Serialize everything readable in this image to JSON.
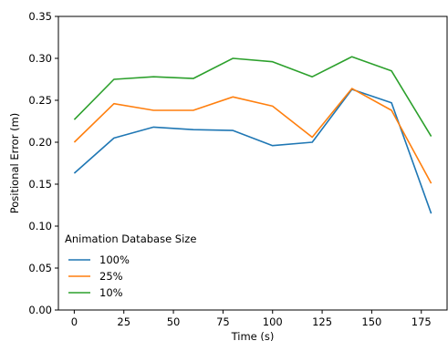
{
  "chart_data": {
    "type": "line",
    "title": "",
    "xlabel": "Time (s)",
    "ylabel": "Positional Error (m)",
    "xlim": [
      -8,
      188
    ],
    "ylim": [
      0.0,
      0.35
    ],
    "xticks": [
      0,
      25,
      50,
      75,
      100,
      125,
      150,
      175
    ],
    "yticks": [
      0.0,
      0.05,
      0.1,
      0.15,
      0.2,
      0.25,
      0.3,
      0.35
    ],
    "xtick_labels": [
      "0",
      "25",
      "50",
      "75",
      "100",
      "125",
      "150",
      "175"
    ],
    "ytick_labels": [
      "0.00",
      "0.05",
      "0.10",
      "0.15",
      "0.20",
      "0.25",
      "0.30",
      "0.35"
    ],
    "grid": false,
    "legend": {
      "title": "Animation Database Size",
      "placement": "lower-left"
    },
    "x": [
      0,
      20,
      40,
      60,
      80,
      100,
      120,
      140,
      160,
      180
    ],
    "series": [
      {
        "name": "100%",
        "color": "#1f77b4",
        "values": [
          0.163,
          0.205,
          0.218,
          0.215,
          0.214,
          0.196,
          0.2,
          0.263,
          0.247,
          0.115
        ]
      },
      {
        "name": "25%",
        "color": "#ff7f0e",
        "values": [
          0.2,
          0.246,
          0.238,
          0.238,
          0.254,
          0.243,
          0.206,
          0.264,
          0.238,
          0.151
        ]
      },
      {
        "name": "10%",
        "color": "#2ca02c",
        "values": [
          0.227,
          0.275,
          0.278,
          0.276,
          0.3,
          0.296,
          0.278,
          0.302,
          0.285,
          0.207
        ]
      }
    ]
  }
}
